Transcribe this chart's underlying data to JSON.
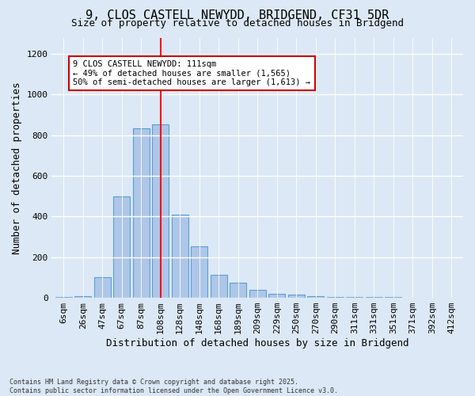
{
  "title1": "9, CLOS CASTELL NEWYDD, BRIDGEND, CF31 5DR",
  "title2": "Size of property relative to detached houses in Bridgend",
  "xlabel": "Distribution of detached houses by size in Bridgend",
  "ylabel": "Number of detached properties",
  "footnote": "Contains HM Land Registry data © Crown copyright and database right 2025.\nContains public sector information licensed under the Open Government Licence v3.0.",
  "bar_labels": [
    "6sqm",
    "26sqm",
    "47sqm",
    "67sqm",
    "87sqm",
    "108sqm",
    "128sqm",
    "148sqm",
    "168sqm",
    "189sqm",
    "209sqm",
    "229sqm",
    "250sqm",
    "270sqm",
    "290sqm",
    "311sqm",
    "331sqm",
    "351sqm",
    "371sqm",
    "392sqm",
    "412sqm"
  ],
  "bar_values": [
    5,
    10,
    100,
    500,
    835,
    855,
    410,
    255,
    115,
    75,
    40,
    20,
    15,
    10,
    5,
    5,
    3,
    5,
    2,
    2,
    2
  ],
  "bar_color": "#aec6e8",
  "bar_edge_color": "#5a9fd4",
  "redline_index": 5,
  "annotation_line1": "9 CLOS CASTELL NEWYDD: 111sqm",
  "annotation_line2": "← 49% of detached houses are smaller (1,565)",
  "annotation_line3": "50% of semi-detached houses are larger (1,613) →",
  "ylim_max": 1280,
  "yticks": [
    0,
    200,
    400,
    600,
    800,
    1000,
    1200
  ],
  "bg_color": "#dce8f5",
  "title_fontsize": 11,
  "subtitle_fontsize": 9,
  "axis_label_fontsize": 9,
  "tick_fontsize": 8
}
